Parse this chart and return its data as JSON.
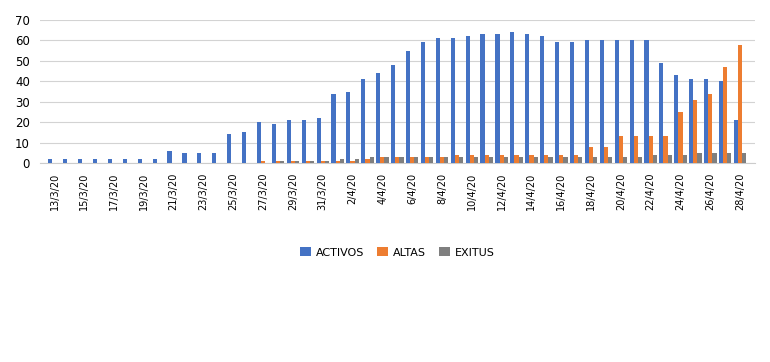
{
  "dates_labels": [
    "13/3/20",
    "15/3/20",
    "17/3/20",
    "19/3/20",
    "21/3/20",
    "23/3/20",
    "25/3/20",
    "27/3/20",
    "29/3/20",
    "31/3/20",
    "2/4/20",
    "4/4/20",
    "6/4/20",
    "8/4/20",
    "10/4/20",
    "12/4/20",
    "14/4/20",
    "16/4/20",
    "18/4/20",
    "20/4/20",
    "22/4/20",
    "24/4/20",
    "26/4/20",
    "28/4/20"
  ],
  "all_dates": [
    "13/3/20",
    "14/3/20",
    "15/3/20",
    "16/3/20",
    "17/3/20",
    "18/3/20",
    "19/3/20",
    "20/3/20",
    "21/3/20",
    "22/3/20",
    "23/3/20",
    "24/3/20",
    "25/3/20",
    "26/3/20",
    "27/3/20",
    "28/3/20",
    "29/3/20",
    "30/3/20",
    "31/3/20",
    "1/4/20",
    "2/4/20",
    "3/4/20",
    "4/4/20",
    "5/4/20",
    "6/4/20",
    "7/4/20",
    "8/4/20",
    "9/4/20",
    "10/4/20",
    "11/4/20",
    "12/4/20",
    "13/4/20",
    "14/4/20",
    "15/4/20",
    "16/4/20",
    "17/4/20",
    "18/4/20",
    "19/4/20",
    "20/4/20",
    "21/4/20",
    "22/4/20",
    "23/4/20",
    "24/4/20",
    "25/4/20",
    "26/4/20",
    "27/4/20",
    "28/4/20"
  ],
  "activos": [
    2,
    2,
    2,
    2,
    2,
    2,
    2,
    2,
    6,
    5,
    5,
    5,
    14,
    15,
    20,
    19,
    21,
    21,
    22,
    34,
    35,
    41,
    44,
    48,
    55,
    59,
    61,
    61,
    62,
    63,
    63,
    64,
    63,
    62,
    59,
    59,
    60,
    60,
    60,
    60,
    60,
    49,
    43,
    41,
    41,
    40,
    21
  ],
  "altas": [
    0,
    0,
    0,
    0,
    0,
    0,
    0,
    0,
    0,
    0,
    0,
    0,
    0,
    0,
    1,
    1,
    1,
    1,
    1,
    1,
    1,
    2,
    3,
    3,
    3,
    3,
    3,
    4,
    4,
    4,
    4,
    4,
    4,
    4,
    4,
    4,
    8,
    8,
    13,
    13,
    13,
    13,
    25,
    31,
    34,
    47,
    58
  ],
  "exitus": [
    0,
    0,
    0,
    0,
    0,
    0,
    0,
    0,
    0,
    0,
    0,
    0,
    0,
    0,
    0,
    1,
    1,
    1,
    1,
    2,
    2,
    3,
    3,
    3,
    3,
    3,
    3,
    3,
    3,
    3,
    3,
    3,
    3,
    3,
    3,
    3,
    3,
    3,
    3,
    3,
    4,
    4,
    4,
    5,
    5,
    5,
    5
  ],
  "label_tick_positions": [
    0,
    2,
    4,
    6,
    8,
    10,
    12,
    14,
    16,
    18,
    20,
    22,
    24,
    26,
    28,
    30,
    32,
    34,
    36,
    38,
    40,
    42,
    44,
    46
  ],
  "color_activos": "#4472C4",
  "color_altas": "#ED7D31",
  "color_exitus": "#7F7F7F",
  "ylim": [
    0,
    70
  ],
  "yticks": [
    0,
    10,
    20,
    30,
    40,
    50,
    60,
    70
  ],
  "legend_labels": [
    "ACTIVOS",
    "ALTAS",
    "EXITUS"
  ],
  "background_color": "#ffffff",
  "grid_color": "#d3d3d3"
}
